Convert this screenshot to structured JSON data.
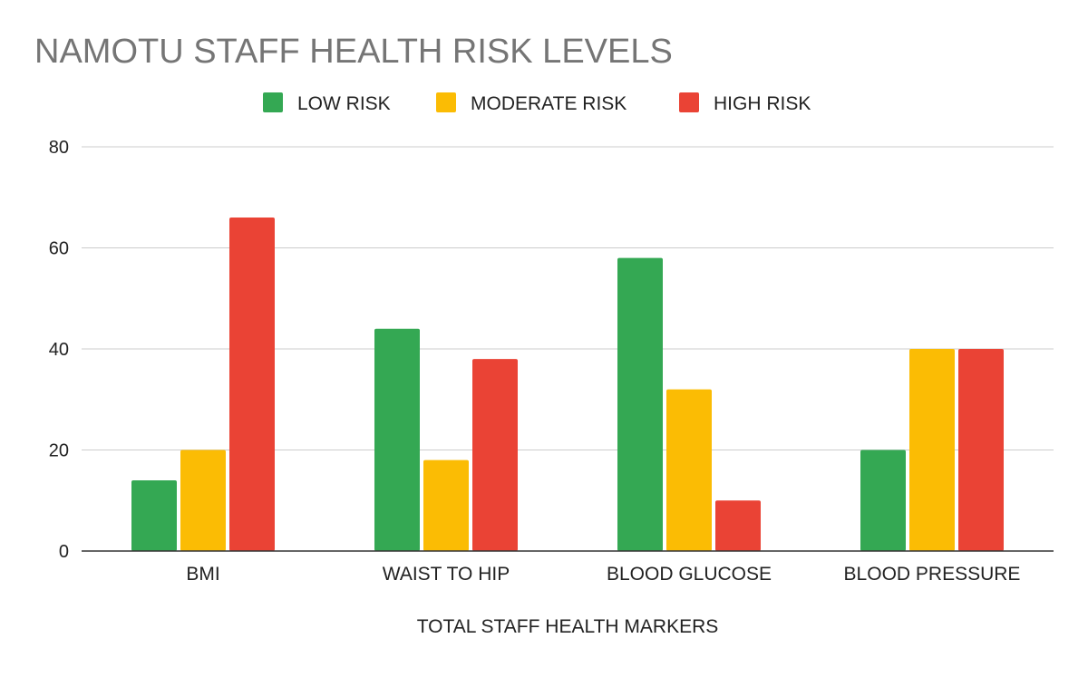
{
  "chart_data": {
    "type": "bar",
    "title": "NAMOTU STAFF HEALTH RISK LEVELS",
    "xlabel": "TOTAL STAFF HEALTH MARKERS",
    "ylabel": "",
    "ylim": [
      0,
      80
    ],
    "yticks": [
      0,
      20,
      40,
      60,
      80
    ],
    "grid": true,
    "legend_position": "top",
    "categories": [
      "BMI",
      "WAIST TO HIP",
      "BLOOD GLUCOSE",
      "BLOOD PRESSURE"
    ],
    "series": [
      {
        "name": "LOW RISK",
        "color": "#34a853",
        "values": [
          14,
          44,
          58,
          20
        ]
      },
      {
        "name": "MODERATE RISK",
        "color": "#fbbc04",
        "values": [
          20,
          18,
          32,
          40
        ]
      },
      {
        "name": "HIGH RISK",
        "color": "#ea4335",
        "values": [
          66,
          38,
          10,
          40
        ]
      }
    ]
  }
}
